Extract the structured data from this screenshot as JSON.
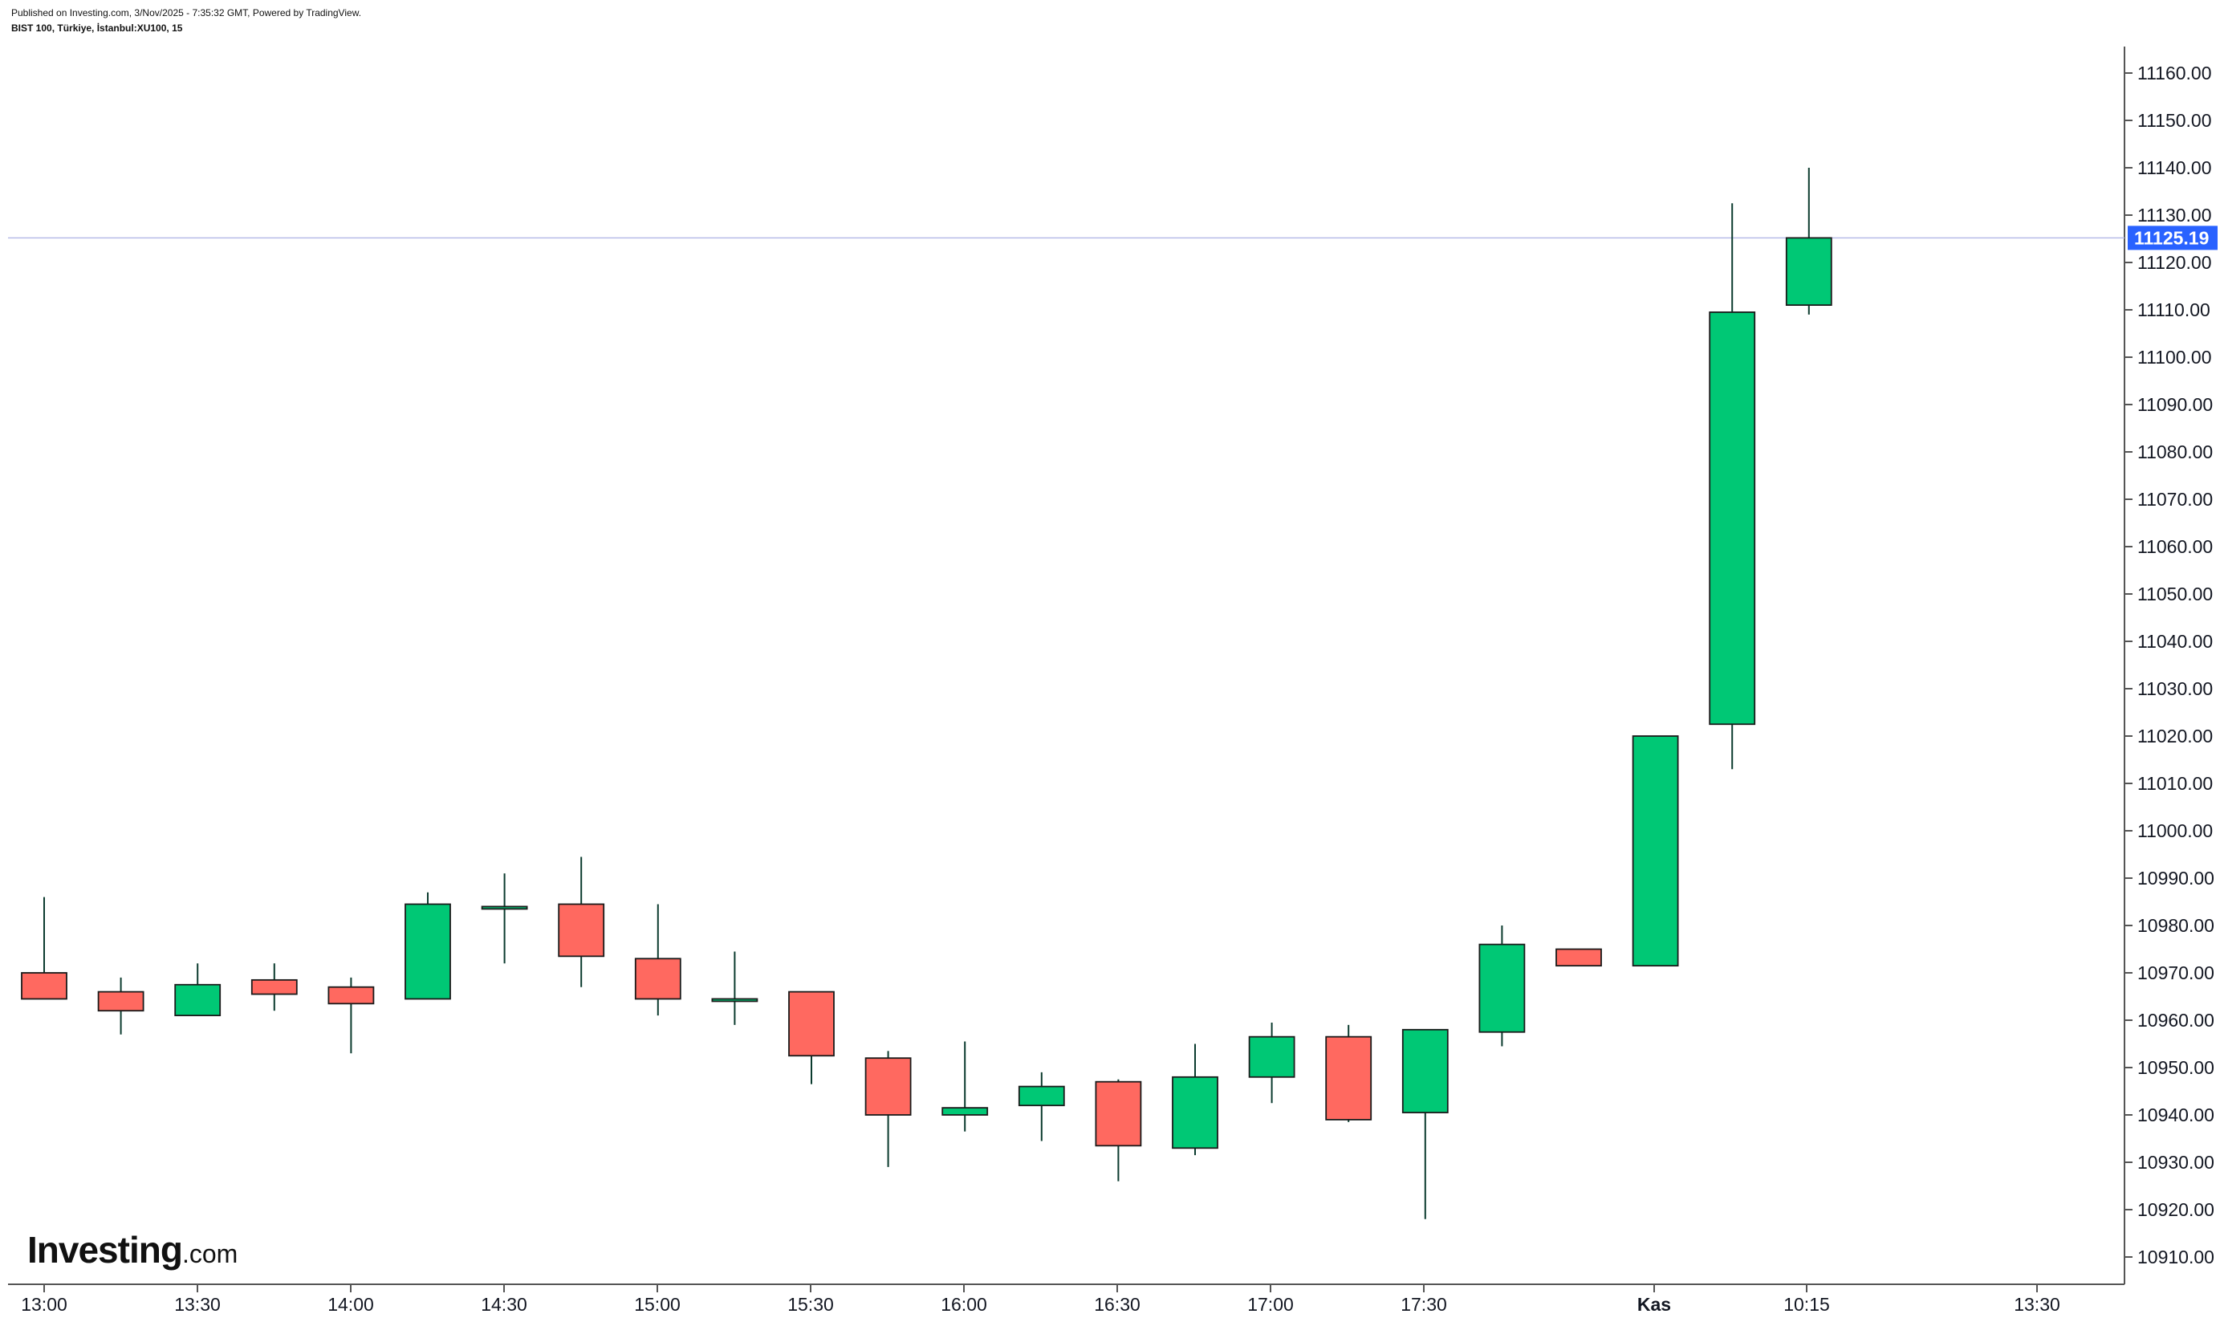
{
  "header": {
    "published": "Published on Investing.com, 3/Nov/2025 - 7:35:32 GMT, Powered by TradingView.",
    "symbol": "BIST 100, Türkiye, İstanbul:XU100, 15"
  },
  "logo": {
    "brand": "Investing",
    "domain": ".com"
  },
  "chart_data": {
    "type": "candlestick",
    "title": "BIST 100, Türkiye, İstanbul:XU100, 15",
    "ylim": [
      10905,
      11170
    ],
    "y_ticks": [
      10910,
      10920,
      10930,
      10940,
      10950,
      10960,
      10970,
      10980,
      10990,
      11000,
      11010,
      11020,
      11030,
      11040,
      11050,
      11060,
      11070,
      11080,
      11090,
      11100,
      11110,
      11120,
      11130,
      11140,
      11150,
      11160
    ],
    "y_tick_labels": [
      "10910.00",
      "10920.00",
      "10930.00",
      "10940.00",
      "10950.00",
      "10960.00",
      "10970.00",
      "10980.00",
      "10990.00",
      "11000.00",
      "11010.00",
      "11020.00",
      "11030.00",
      "11040.00",
      "11050.00",
      "11060.00",
      "11070.00",
      "11080.00",
      "11090.00",
      "11100.00",
      "11110.00",
      "11120.00",
      "11130.00",
      "11140.00",
      "11150.00",
      "11160.00"
    ],
    "x_tick_labels": [
      "13:00",
      "13:30",
      "14:00",
      "14:30",
      "15:00",
      "15:30",
      "16:00",
      "16:30",
      "17:00",
      "17:30",
      "Kas",
      "10:15",
      "13:30"
    ],
    "last_price": 11125.19,
    "last_price_label": "11125.19",
    "colors": {
      "up": "#00c875",
      "down": "#ff6960",
      "wick": "#0b3b2e",
      "last_price": "#2962ff",
      "grid_line": "#b8bce8"
    },
    "candles": [
      {
        "time": "13:00",
        "open": 10970,
        "high": 10986,
        "low": 10965,
        "close": 10964.5
      },
      {
        "time": "13:15",
        "open": 10966,
        "high": 10969,
        "low": 10957,
        "close": 10962
      },
      {
        "time": "13:30",
        "open": 10961,
        "high": 10972,
        "low": 10961,
        "close": 10967.5
      },
      {
        "time": "13:45",
        "open": 10968.5,
        "high": 10972,
        "low": 10962,
        "close": 10965.5
      },
      {
        "time": "14:00",
        "open": 10967,
        "high": 10969,
        "low": 10953,
        "close": 10963.5
      },
      {
        "time": "14:15",
        "open": 10964.5,
        "high": 10987,
        "low": 10964.5,
        "close": 10984.5
      },
      {
        "time": "14:30",
        "open": 10984,
        "high": 10991,
        "low": 10972,
        "close": 10984
      },
      {
        "time": "14:45",
        "open": 10984.5,
        "high": 10994.5,
        "low": 10967,
        "close": 10973.5
      },
      {
        "time": "15:00",
        "open": 10973,
        "high": 10984.5,
        "low": 10961,
        "close": 10964.5
      },
      {
        "time": "15:15",
        "open": 10964.5,
        "high": 10974.5,
        "low": 10959,
        "close": 10964.5
      },
      {
        "time": "15:30",
        "open": 10966,
        "high": 10966,
        "low": 10946.5,
        "close": 10952.5
      },
      {
        "time": "15:45",
        "open": 10952,
        "high": 10953.5,
        "low": 10929,
        "close": 10940
      },
      {
        "time": "16:00",
        "open": 10940,
        "high": 10955.5,
        "low": 10936.5,
        "close": 10941.5
      },
      {
        "time": "16:15",
        "open": 10942,
        "high": 10949,
        "low": 10934.5,
        "close": 10946
      },
      {
        "time": "16:30",
        "open": 10947,
        "high": 10947.5,
        "low": 10926,
        "close": 10933.5
      },
      {
        "time": "16:45",
        "open": 10933,
        "high": 10955,
        "low": 10931.5,
        "close": 10948
      },
      {
        "time": "17:00",
        "open": 10948,
        "high": 10959.5,
        "low": 10942.5,
        "close": 10956.5
      },
      {
        "time": "17:15",
        "open": 10956.5,
        "high": 10959,
        "low": 10938.5,
        "close": 10939
      },
      {
        "time": "17:30",
        "open": 10940.5,
        "high": 10958,
        "low": 10918,
        "close": 10958
      },
      {
        "time": "17:45",
        "open": 10957.5,
        "high": 10980,
        "low": 10954.5,
        "close": 10976
      },
      {
        "time": "18:00",
        "open": 10975,
        "high": 10975,
        "low": 10971.5,
        "close": 10971.5
      },
      {
        "time": "10:00",
        "open": 10971.5,
        "high": 11020,
        "low": 10971.5,
        "close": 11020
      },
      {
        "time": "10:00b",
        "open": 11022.5,
        "high": 11132.5,
        "low": 11013,
        "close": 11109.5
      },
      {
        "time": "10:15",
        "open": 11111,
        "high": 11140,
        "low": 11109,
        "close": 11125.19
      }
    ]
  }
}
